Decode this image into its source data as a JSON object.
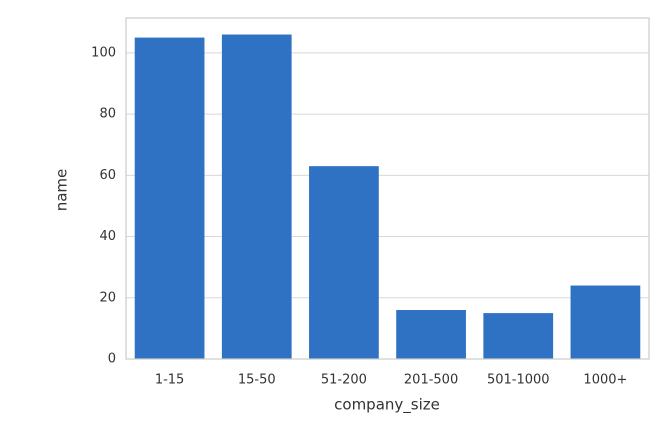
{
  "chart_data": {
    "type": "bar",
    "categories": [
      "1-15",
      "15-50",
      "51-200",
      "201-500",
      "501-1000",
      "1000+"
    ],
    "values": [
      105,
      106,
      63,
      16,
      15,
      24
    ],
    "color": "#2f72c3",
    "xlabel": "company_size",
    "ylabel": "name",
    "ylim": [
      0,
      111.4
    ],
    "yticks": [
      0,
      20,
      40,
      60,
      80,
      100
    ],
    "grid": true
  }
}
